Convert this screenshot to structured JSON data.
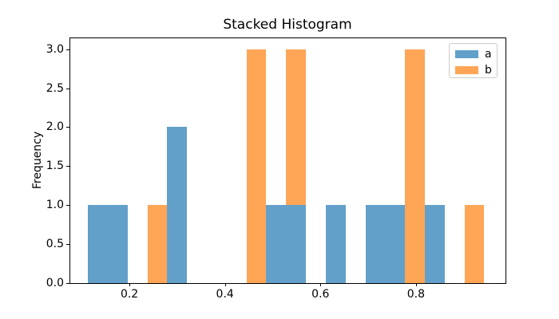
{
  "figure": {
    "title": "Stacked Histogram",
    "ylabel": "Frequency"
  },
  "legend": {
    "position": "upper right",
    "entries": [
      {
        "label": "a",
        "color": "#62a0ca"
      },
      {
        "label": "b",
        "color": "#ffa556"
      }
    ]
  },
  "chart_data": {
    "type": "bar",
    "subtype": "stacked-histogram",
    "title": "Stacked Histogram",
    "xlabel": "",
    "ylabel": "Frequency",
    "stacked": true,
    "grid": false,
    "legend_position": "upper right",
    "n_bins": 20,
    "bin_start": 0.113,
    "bin_width": 0.0415,
    "series": [
      {
        "name": "a",
        "color": "#62a0ca",
        "counts": [
          1,
          1,
          0,
          0,
          2,
          0,
          0,
          0,
          0,
          1,
          1,
          0,
          1,
          0,
          1,
          1,
          0,
          1,
          0,
          0
        ]
      },
      {
        "name": "b",
        "color": "#ffa556",
        "counts": [
          0,
          0,
          0,
          1,
          0,
          0,
          0,
          0,
          3,
          0,
          2,
          0,
          0,
          0,
          0,
          0,
          3,
          0,
          0,
          1
        ]
      }
    ],
    "xlim": [
      0.0745,
      0.9875
    ],
    "ylim": [
      0,
      3.15
    ],
    "xticks": [
      0.2,
      0.4,
      0.6,
      0.8
    ],
    "yticks": [
      0.0,
      0.5,
      1.0,
      1.5,
      2.0,
      2.5,
      3.0
    ],
    "xtick_format_decimals": 1,
    "ytick_format_decimals": 1
  }
}
